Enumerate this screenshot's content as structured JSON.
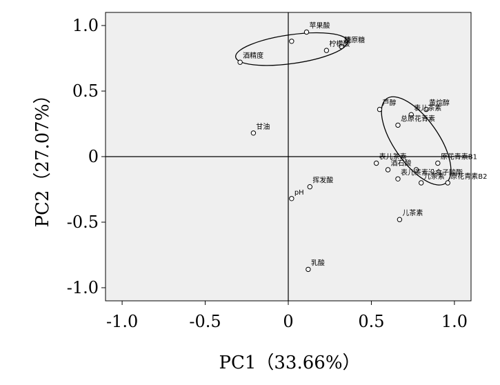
{
  "chart_data": {
    "type": "scatter",
    "title": "",
    "xlabel": "PC1（33.66%）",
    "ylabel": "PC2（27.07%）",
    "xlim": [
      -1.1,
      1.1
    ],
    "ylim": [
      -1.1,
      1.1
    ],
    "x_ticks": [
      "-1.0",
      "-0.5",
      "0",
      "0.5",
      "1.0"
    ],
    "y_ticks": [
      "1.0",
      "0.5",
      "0",
      "-0.5",
      "-1.0"
    ],
    "grid": false,
    "reference_lines": [
      0,
      0
    ],
    "background": "#efefef",
    "points": [
      {
        "label": "苹果酸",
        "x": 0.11,
        "y": 0.95
      },
      {
        "label": "",
        "x": 0.02,
        "y": 0.88
      },
      {
        "label": "柠檬酸",
        "x": 0.23,
        "y": 0.81
      },
      {
        "label": "糖",
        "x": 0.32,
        "y": 0.84
      },
      {
        "label": "还原糖",
        "x": 0.32,
        "y": 0.84
      },
      {
        "label": "酒精度",
        "x": -0.29,
        "y": 0.72
      },
      {
        "label": "甘油",
        "x": -0.21,
        "y": 0.18
      },
      {
        "label": "芦醇",
        "x": 0.55,
        "y": 0.36
      },
      {
        "label": "黄烷醇",
        "x": 0.83,
        "y": 0.36
      },
      {
        "label": "表儿茶素",
        "x": 0.74,
        "y": 0.32
      },
      {
        "label": "总原花青素",
        "x": 0.66,
        "y": 0.24
      },
      {
        "label": "表儿茶素",
        "x": 0.53,
        "y": -0.05
      },
      {
        "label": "原花青素B1",
        "x": 0.9,
        "y": -0.05
      },
      {
        "label": "酒石酸",
        "x": 0.6,
        "y": -0.1
      },
      {
        "label": "",
        "x": 0.77,
        "y": -0.1
      },
      {
        "label": "表儿茶素没食子酸酯",
        "x": 0.66,
        "y": -0.17
      },
      {
        "label": "儿茶素",
        "x": 0.8,
        "y": -0.2
      },
      {
        "label": "原花青素B2",
        "x": 0.96,
        "y": -0.2
      },
      {
        "label": "挥发酸",
        "x": 0.13,
        "y": -0.23
      },
      {
        "label": "pH",
        "x": 0.02,
        "y": -0.32
      },
      {
        "label": "儿茶素",
        "x": 0.67,
        "y": -0.48
      },
      {
        "label": "乳酸",
        "x": 0.12,
        "y": -0.86
      }
    ],
    "ellipses": [
      {
        "cx": 0.02,
        "cy": 0.82,
        "rx": 0.34,
        "ry": 0.11,
        "angle": -8
      },
      {
        "cx": 0.77,
        "cy": 0.12,
        "rx": 0.31,
        "ry": 0.17,
        "angle": 55
      }
    ]
  }
}
